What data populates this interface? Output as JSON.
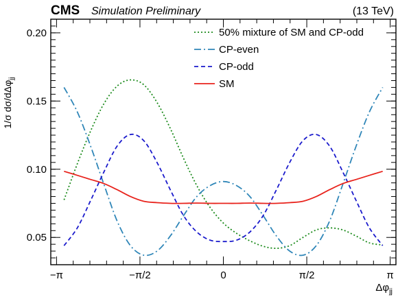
{
  "header": {
    "experiment": "CMS",
    "status": "Simulation Preliminary",
    "energy": "(13 TeV)"
  },
  "colors": {
    "frame": "#000000",
    "background": "#ffffff"
  },
  "chart_data": {
    "type": "line",
    "xlabel": "Δφ_jj",
    "ylabel": "1/σ dσ/dΔφ_jj",
    "xlim": [
      -3.25,
      3.25
    ],
    "ylim": [
      0.03,
      0.21
    ],
    "xscale": "linear",
    "yscale": "linear",
    "grid": false,
    "legend_position": "top-right",
    "x_ticks": [
      {
        "value": -3.1416,
        "label": "−π"
      },
      {
        "value": -1.5708,
        "label": "−π/2"
      },
      {
        "value": 0,
        "label": "0"
      },
      {
        "value": 1.5708,
        "label": "π/2"
      },
      {
        "value": 3.1416,
        "label": "π"
      }
    ],
    "y_ticks": [
      {
        "value": 0.05,
        "label": "0.05"
      },
      {
        "value": 0.1,
        "label": "0.10"
      },
      {
        "value": 0.15,
        "label": "0.15"
      },
      {
        "value": 0.2,
        "label": "0.20"
      }
    ],
    "series": [
      {
        "name": "50% mixture of SM and CP-odd",
        "color": "#1a8a1a",
        "dash": "dotted",
        "x": [
          -3.0,
          -2.75,
          -2.5,
          -2.25,
          -2.0,
          -1.75,
          -1.5,
          -1.25,
          -1.0,
          -0.75,
          -0.5,
          -0.25,
          0.0,
          0.25,
          0.5,
          0.75,
          1.0,
          1.25,
          1.5,
          1.75,
          2.0,
          2.25,
          2.5,
          2.75,
          3.0
        ],
        "y": [
          0.0775,
          0.104,
          0.128,
          0.148,
          0.161,
          0.1655,
          0.162,
          0.149,
          0.13,
          0.108,
          0.088,
          0.072,
          0.0605,
          0.053,
          0.0475,
          0.0435,
          0.042,
          0.044,
          0.05,
          0.0555,
          0.057,
          0.0555,
          0.051,
          0.046,
          0.0445
        ]
      },
      {
        "name": "CP-even",
        "color": "#2f86b8",
        "dash": "dashdot",
        "x": [
          -3.0,
          -2.75,
          -2.5,
          -2.25,
          -2.0,
          -1.75,
          -1.5,
          -1.25,
          -1.0,
          -0.75,
          -0.5,
          -0.25,
          0.0,
          0.25,
          0.5,
          0.75,
          1.0,
          1.25,
          1.5,
          1.75,
          2.0,
          2.25,
          2.5,
          2.75,
          3.0
        ],
        "y": [
          0.16,
          0.142,
          0.117,
          0.089,
          0.062,
          0.044,
          0.037,
          0.04,
          0.051,
          0.066,
          0.08,
          0.088,
          0.091,
          0.088,
          0.08,
          0.066,
          0.051,
          0.04,
          0.037,
          0.044,
          0.062,
          0.089,
          0.117,
          0.142,
          0.16
        ]
      },
      {
        "name": "CP-odd",
        "color": "#1a1acc",
        "dash": "dashed",
        "x": [
          -3.0,
          -2.75,
          -2.5,
          -2.25,
          -2.0,
          -1.75,
          -1.5,
          -1.25,
          -1.0,
          -0.75,
          -0.5,
          -0.25,
          0.0,
          0.25,
          0.5,
          0.75,
          1.0,
          1.25,
          1.5,
          1.75,
          2.0,
          2.25,
          2.5,
          2.75,
          3.0
        ],
        "y": [
          0.044,
          0.057,
          0.077,
          0.098,
          0.117,
          0.1255,
          0.121,
          0.105,
          0.085,
          0.066,
          0.054,
          0.048,
          0.047,
          0.048,
          0.054,
          0.066,
          0.085,
          0.105,
          0.121,
          0.1255,
          0.117,
          0.098,
          0.077,
          0.057,
          0.044
        ]
      },
      {
        "name": "SM",
        "color": "#e8221b",
        "dash": "solid",
        "x": [
          -3.0,
          -2.75,
          -2.5,
          -2.25,
          -2.0,
          -1.75,
          -1.5,
          -1.25,
          -1.0,
          -0.75,
          -0.5,
          -0.25,
          0.0,
          0.25,
          0.5,
          0.75,
          1.0,
          1.25,
          1.5,
          1.75,
          2.0,
          2.25,
          2.5,
          2.75,
          3.0
        ],
        "y": [
          0.0985,
          0.0955,
          0.0925,
          0.0895,
          0.085,
          0.08,
          0.0765,
          0.0755,
          0.075,
          0.075,
          0.0752,
          0.075,
          0.075,
          0.075,
          0.0752,
          0.075,
          0.075,
          0.0755,
          0.0765,
          0.08,
          0.085,
          0.0895,
          0.0925,
          0.0955,
          0.0985
        ]
      }
    ]
  }
}
